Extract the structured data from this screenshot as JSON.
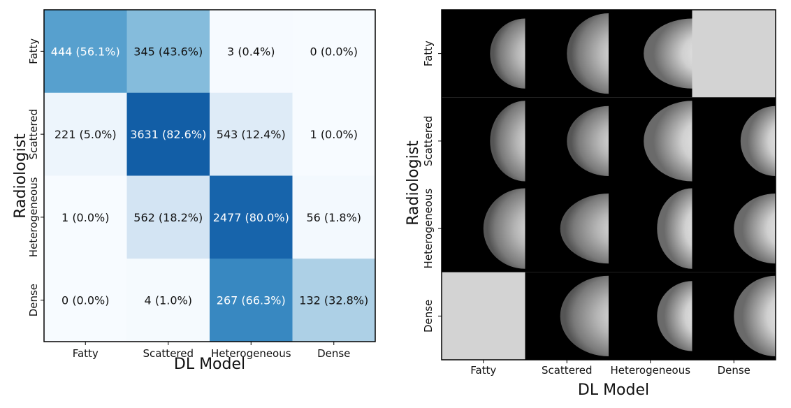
{
  "chart_data": [
    {
      "type": "heatmap",
      "title": "",
      "xlabel": "DL Model",
      "ylabel": "Radiologist",
      "categories_x": [
        "Fatty",
        "Scattered",
        "Heterogeneous",
        "Dense"
      ],
      "categories_y": [
        "Fatty",
        "Scattered",
        "Heterogeneous",
        "Dense"
      ],
      "counts": [
        [
          444,
          345,
          3,
          0
        ],
        [
          221,
          3631,
          543,
          1
        ],
        [
          1,
          562,
          2477,
          56
        ],
        [
          0,
          4,
          267,
          132
        ]
      ],
      "percents": [
        [
          56.1,
          43.6,
          0.4,
          0.0
        ],
        [
          5.0,
          82.6,
          12.4,
          0.0
        ],
        [
          0.0,
          18.2,
          80.0,
          1.8
        ],
        [
          0.0,
          1.0,
          66.3,
          32.8
        ]
      ],
      "cell_labels": [
        [
          "444 (56.1%)",
          "345 (43.6%)",
          "3 (0.4%)",
          "0 (0.0%)"
        ],
        [
          "221 (5.0%)",
          "3631 (82.6%)",
          "543 (12.4%)",
          "1 (0.0%)"
        ],
        [
          "1 (0.0%)",
          "562 (18.2%)",
          "2477 (80.0%)",
          "56 (1.8%)"
        ],
        [
          "0 (0.0%)",
          "4 (1.0%)",
          "267 (66.3%)",
          "132 (32.8%)"
        ]
      ],
      "colormap": "Blues",
      "color_range": [
        0,
        100
      ]
    },
    {
      "type": "image-grid",
      "title": "",
      "xlabel": "DL Model",
      "ylabel": "Radiologist",
      "categories_x": [
        "Fatty",
        "Scattered",
        "Heterogeneous",
        "Dense"
      ],
      "categories_y": [
        "Fatty",
        "Scattered",
        "Heterogeneous",
        "Dense"
      ],
      "empty_cells": [
        [
          0,
          3
        ],
        [
          3,
          0
        ]
      ],
      "empty_color": "#d3d3d3",
      "image_description": "mammogram"
    }
  ]
}
